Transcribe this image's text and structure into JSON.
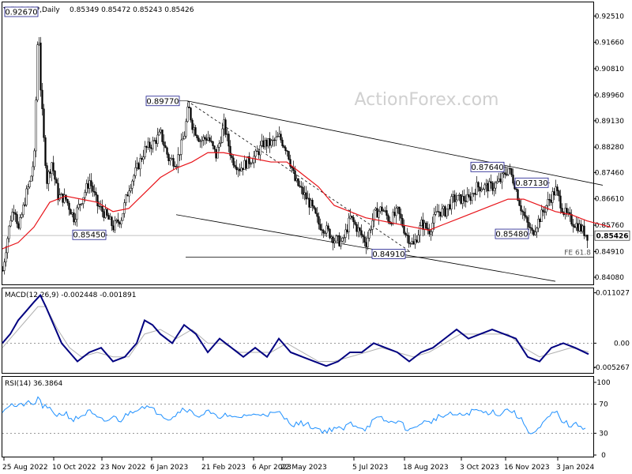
{
  "header": {
    "symbol": "EURGBP,Daily",
    "ohlc": "0.85349 0.85472 0.85243 0.85426"
  },
  "watermark": "ActionForex.com",
  "chart_data": [
    {
      "type": "candlestick",
      "panel": "price",
      "ylim": [
        0.8385,
        0.9295
      ],
      "y_ticks": [
        "0.92510",
        "0.91660",
        "0.90810",
        "0.89960",
        "0.89130",
        "0.88280",
        "0.87460",
        "0.86610",
        "0.85760",
        "0.84910",
        "0.84080"
      ],
      "last_price": "0.85426",
      "x_dates": [
        "25 Aug 2022",
        "10 Oct 2022",
        "23 Nov 2022",
        "6 Jan 2023",
        "21 Feb 2023",
        "6 Apr 2023",
        "22 May 2023",
        "5 Jul 2023",
        "18 Aug 2023",
        "3 Oct 2023",
        "16 Nov 2023",
        "3 Jan 2024"
      ],
      "close_path": [
        [
          0,
          0.843
        ],
        [
          5,
          0.852
        ],
        [
          10,
          0.86
        ],
        [
          15,
          0.864
        ],
        [
          20,
          0.856
        ],
        [
          25,
          0.862
        ],
        [
          30,
          0.868
        ],
        [
          35,
          0.872
        ],
        [
          40,
          0.88
        ],
        [
          45,
          0.925
        ],
        [
          48,
          0.902
        ],
        [
          52,
          0.885
        ],
        [
          56,
          0.872
        ],
        [
          62,
          0.878
        ],
        [
          70,
          0.867
        ],
        [
          80,
          0.866
        ],
        [
          90,
          0.86
        ],
        [
          100,
          0.866
        ],
        [
          110,
          0.872
        ],
        [
          120,
          0.864
        ],
        [
          130,
          0.861
        ],
        [
          140,
          0.857
        ],
        [
          150,
          0.86
        ],
        [
          160,
          0.87
        ],
        [
          170,
          0.876
        ],
        [
          180,
          0.882
        ],
        [
          190,
          0.884
        ],
        [
          200,
          0.887
        ],
        [
          210,
          0.879
        ],
        [
          220,
          0.878
        ],
        [
          230,
          0.887
        ],
        [
          235,
          0.896
        ],
        [
          240,
          0.89
        ],
        [
          250,
          0.885
        ],
        [
          260,
          0.886
        ],
        [
          270,
          0.88
        ],
        [
          280,
          0.89
        ],
        [
          290,
          0.879
        ],
        [
          300,
          0.876
        ],
        [
          310,
          0.878
        ],
        [
          320,
          0.88
        ],
        [
          330,
          0.884
        ],
        [
          340,
          0.884
        ],
        [
          350,
          0.886
        ],
        [
          360,
          0.882
        ],
        [
          370,
          0.872
        ],
        [
          380,
          0.868
        ],
        [
          390,
          0.864
        ],
        [
          400,
          0.858
        ],
        [
          410,
          0.856
        ],
        [
          420,
          0.853
        ],
        [
          430,
          0.852
        ],
        [
          440,
          0.86
        ],
        [
          450,
          0.856
        ],
        [
          460,
          0.852
        ],
        [
          470,
          0.861
        ],
        [
          480,
          0.863
        ],
        [
          490,
          0.859
        ],
        [
          500,
          0.862
        ],
        [
          510,
          0.855
        ],
        [
          520,
          0.851
        ],
        [
          530,
          0.858
        ],
        [
          540,
          0.856
        ],
        [
          550,
          0.862
        ],
        [
          560,
          0.862
        ],
        [
          570,
          0.866
        ],
        [
          580,
          0.866
        ],
        [
          590,
          0.866
        ],
        [
          600,
          0.87
        ],
        [
          610,
          0.87
        ],
        [
          620,
          0.87
        ],
        [
          630,
          0.872
        ],
        [
          640,
          0.876
        ],
        [
          648,
          0.871
        ],
        [
          655,
          0.864
        ],
        [
          662,
          0.859
        ],
        [
          670,
          0.855
        ],
        [
          680,
          0.86
        ],
        [
          690,
          0.865
        ],
        [
          700,
          0.869
        ],
        [
          710,
          0.862
        ],
        [
          720,
          0.859
        ],
        [
          730,
          0.857
        ],
        [
          740,
          0.8543
        ]
      ],
      "moving_average": [
        [
          0,
          0.85
        ],
        [
          20,
          0.852
        ],
        [
          40,
          0.857
        ],
        [
          60,
          0.865
        ],
        [
          80,
          0.867
        ],
        [
          100,
          0.866
        ],
        [
          120,
          0.865
        ],
        [
          140,
          0.862
        ],
        [
          160,
          0.863
        ],
        [
          180,
          0.868
        ],
        [
          200,
          0.873
        ],
        [
          220,
          0.876
        ],
        [
          240,
          0.878
        ],
        [
          260,
          0.881
        ],
        [
          280,
          0.881
        ],
        [
          300,
          0.88
        ],
        [
          320,
          0.879
        ],
        [
          340,
          0.878
        ],
        [
          360,
          0.878
        ],
        [
          380,
          0.874
        ],
        [
          400,
          0.87
        ],
        [
          420,
          0.864
        ],
        [
          440,
          0.862
        ],
        [
          460,
          0.86
        ],
        [
          480,
          0.859
        ],
        [
          500,
          0.858
        ],
        [
          520,
          0.857
        ],
        [
          540,
          0.856
        ],
        [
          560,
          0.858
        ],
        [
          580,
          0.86
        ],
        [
          600,
          0.862
        ],
        [
          620,
          0.864
        ],
        [
          640,
          0.866
        ],
        [
          660,
          0.866
        ],
        [
          680,
          0.864
        ],
        [
          700,
          0.862
        ],
        [
          720,
          0.861
        ],
        [
          740,
          0.859
        ],
        [
          770,
          0.857
        ]
      ],
      "annotations": [
        {
          "label": "0.92670",
          "price": 0.9267,
          "anchor_x": 45
        },
        {
          "label": "0.89770",
          "price": 0.8977,
          "anchor_x": 234
        },
        {
          "label": "0.85450",
          "price": 0.8545,
          "anchor_x": 133
        },
        {
          "label": "0.84910",
          "price": 0.8491,
          "anchor_x": 516
        },
        {
          "label": "0.87640",
          "price": 0.8764,
          "anchor_x": 641
        },
        {
          "label": "0.87130",
          "price": 0.8713,
          "anchor_x": 693
        },
        {
          "label": "0.85480",
          "price": 0.8548,
          "anchor_x": 668
        }
      ],
      "fe_label": "FE 61.8",
      "fe_level": 0.8473,
      "trendlines": [
        {
          "from": [
            234,
            0.8977
          ],
          "to": [
            760,
            0.8705
          ]
        },
        {
          "from": [
            220,
            0.861
          ],
          "to": [
            700,
            0.8395
          ]
        }
      ],
      "dashed_line": {
        "from": [
          234,
          0.8977
        ],
        "to": [
          516,
          0.8491
        ]
      }
    },
    {
      "type": "line",
      "panel": "macd",
      "title": "MACD(12,26,9) -0.002448 -0.001891",
      "y_ticks": [
        "0.011027",
        "0.00",
        "-0.005267"
      ],
      "ylim": [
        -0.0065,
        0.012
      ],
      "macd": [
        [
          0,
          0.0
        ],
        [
          10,
          0.002
        ],
        [
          20,
          0.005
        ],
        [
          30,
          0.007
        ],
        [
          40,
          0.009
        ],
        [
          48,
          0.0105
        ],
        [
          55,
          0.008
        ],
        [
          65,
          0.004
        ],
        [
          75,
          0.0
        ],
        [
          85,
          -0.002
        ],
        [
          95,
          -0.004
        ],
        [
          110,
          -0.002
        ],
        [
          125,
          -0.001
        ],
        [
          140,
          -0.004
        ],
        [
          155,
          -0.003
        ],
        [
          170,
          0.0
        ],
        [
          180,
          0.005
        ],
        [
          190,
          0.004
        ],
        [
          200,
          0.002
        ],
        [
          215,
          0.0
        ],
        [
          230,
          0.004
        ],
        [
          245,
          0.002
        ],
        [
          260,
          -0.002
        ],
        [
          275,
          0.001
        ],
        [
          290,
          -0.001
        ],
        [
          305,
          -0.003
        ],
        [
          320,
          -0.001
        ],
        [
          335,
          -0.003
        ],
        [
          350,
          0.001
        ],
        [
          365,
          -0.002
        ],
        [
          380,
          -0.003
        ],
        [
          395,
          -0.004
        ],
        [
          410,
          -0.005
        ],
        [
          425,
          -0.004
        ],
        [
          440,
          -0.002
        ],
        [
          455,
          -0.002
        ],
        [
          470,
          0.0
        ],
        [
          485,
          -0.001
        ],
        [
          500,
          -0.002
        ],
        [
          515,
          -0.004
        ],
        [
          530,
          -0.002
        ],
        [
          545,
          -0.001
        ],
        [
          560,
          0.001
        ],
        [
          575,
          0.003
        ],
        [
          590,
          0.001
        ],
        [
          605,
          0.002
        ],
        [
          620,
          0.003
        ],
        [
          635,
          0.002
        ],
        [
          650,
          0.001
        ],
        [
          665,
          -0.003
        ],
        [
          680,
          -0.004
        ],
        [
          695,
          -0.001
        ],
        [
          710,
          0.0
        ],
        [
          725,
          -0.001
        ],
        [
          742,
          -0.0024
        ]
      ],
      "signal": [
        [
          0,
          -0.001
        ],
        [
          15,
          0.002
        ],
        [
          30,
          0.005
        ],
        [
          45,
          0.008
        ],
        [
          55,
          0.008
        ],
        [
          70,
          0.003
        ],
        [
          85,
          -0.001
        ],
        [
          100,
          -0.003
        ],
        [
          120,
          -0.002
        ],
        [
          140,
          -0.003
        ],
        [
          160,
          -0.003
        ],
        [
          180,
          0.002
        ],
        [
          200,
          0.003
        ],
        [
          220,
          0.001
        ],
        [
          240,
          0.003
        ],
        [
          260,
          0.0
        ],
        [
          280,
          0.0
        ],
        [
          300,
          -0.002
        ],
        [
          320,
          -0.002
        ],
        [
          340,
          -0.002
        ],
        [
          360,
          0.0
        ],
        [
          380,
          -0.002
        ],
        [
          400,
          -0.004
        ],
        [
          420,
          -0.004
        ],
        [
          440,
          -0.003
        ],
        [
          460,
          -0.002
        ],
        [
          480,
          -0.001
        ],
        [
          500,
          -0.002
        ],
        [
          520,
          -0.003
        ],
        [
          540,
          -0.002
        ],
        [
          560,
          0.0
        ],
        [
          580,
          0.002
        ],
        [
          600,
          0.002
        ],
        [
          620,
          0.002
        ],
        [
          640,
          0.002
        ],
        [
          660,
          -0.001
        ],
        [
          680,
          -0.003
        ],
        [
          700,
          -0.002
        ],
        [
          720,
          -0.001
        ],
        [
          742,
          -0.0019
        ]
      ]
    },
    {
      "type": "line",
      "panel": "rsi",
      "title": "RSI(14) 36.3864",
      "y_ticks": [
        "100",
        "70",
        "30",
        "0"
      ],
      "ylim": [
        0,
        100
      ],
      "levels": [
        70,
        30
      ],
      "values": [
        [
          0,
          62
        ],
        [
          10,
          70
        ],
        [
          20,
          66
        ],
        [
          30,
          72
        ],
        [
          40,
          68
        ],
        [
          45,
          80
        ],
        [
          50,
          68
        ],
        [
          60,
          62
        ],
        [
          70,
          55
        ],
        [
          80,
          58
        ],
        [
          90,
          48
        ],
        [
          100,
          54
        ],
        [
          110,
          60
        ],
        [
          120,
          50
        ],
        [
          130,
          46
        ],
        [
          140,
          52
        ],
        [
          150,
          48
        ],
        [
          160,
          58
        ],
        [
          170,
          64
        ],
        [
          180,
          68
        ],
        [
          190,
          62
        ],
        [
          200,
          58
        ],
        [
          210,
          50
        ],
        [
          220,
          56
        ],
        [
          230,
          66
        ],
        [
          240,
          58
        ],
        [
          250,
          54
        ],
        [
          260,
          60
        ],
        [
          270,
          52
        ],
        [
          280,
          56
        ],
        [
          290,
          50
        ],
        [
          300,
          52
        ],
        [
          310,
          56
        ],
        [
          320,
          54
        ],
        [
          330,
          58
        ],
        [
          340,
          56
        ],
        [
          350,
          58
        ],
        [
          360,
          48
        ],
        [
          370,
          42
        ],
        [
          380,
          44
        ],
        [
          390,
          40
        ],
        [
          400,
          36
        ],
        [
          410,
          32
        ],
        [
          420,
          38
        ],
        [
          430,
          34
        ],
        [
          440,
          44
        ],
        [
          450,
          40
        ],
        [
          460,
          36
        ],
        [
          470,
          48
        ],
        [
          480,
          50
        ],
        [
          490,
          44
        ],
        [
          500,
          48
        ],
        [
          510,
          38
        ],
        [
          520,
          34
        ],
        [
          530,
          46
        ],
        [
          540,
          44
        ],
        [
          550,
          52
        ],
        [
          560,
          54
        ],
        [
          570,
          56
        ],
        [
          580,
          54
        ],
        [
          590,
          58
        ],
        [
          600,
          62
        ],
        [
          610,
          58
        ],
        [
          620,
          60
        ],
        [
          630,
          56
        ],
        [
          640,
          64
        ],
        [
          650,
          56
        ],
        [
          660,
          44
        ],
        [
          670,
          28
        ],
        [
          680,
          36
        ],
        [
          690,
          50
        ],
        [
          700,
          60
        ],
        [
          710,
          46
        ],
        [
          720,
          40
        ],
        [
          730,
          42
        ],
        [
          740,
          36
        ]
      ]
    }
  ]
}
